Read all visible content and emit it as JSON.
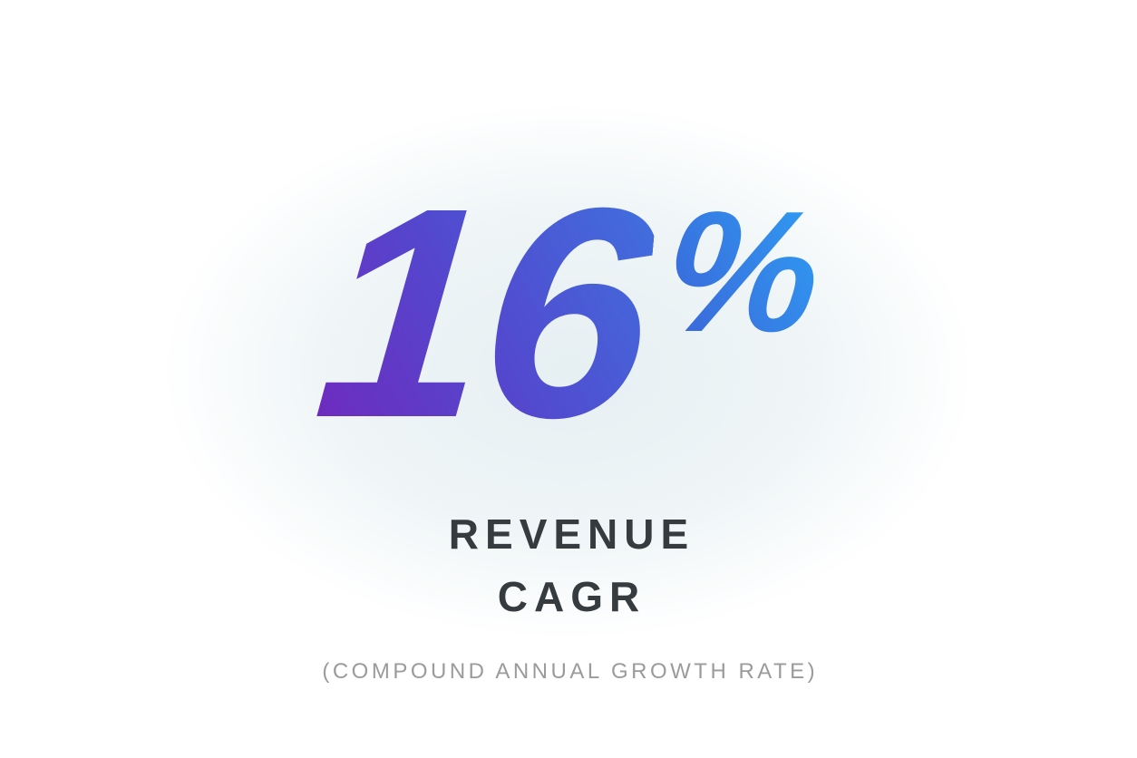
{
  "metric": {
    "value": "16",
    "unit": "%",
    "label_line1": "REVENUE",
    "label_line2": "CAGR",
    "sublabel": "(COMPOUND ANNUAL GROWTH RATE)"
  },
  "colors": {
    "number_gradient_start": "#7227BC",
    "number_gradient_mid": "#5348CE",
    "number_gradient_end": "#3E74E0",
    "percent_gradient_start": "#3C5FD6",
    "percent_gradient_end": "#2EA1F5",
    "label_color": "#363B40",
    "sublabel_color": "#9B9B9B",
    "glow_color": "#E6EFF2"
  },
  "chart_data": {
    "type": "table",
    "title": "REVENUE CAGR",
    "subtitle": "(COMPOUND ANNUAL GROWTH RATE)",
    "rows": [
      {
        "metric": "Revenue CAGR",
        "value": 16,
        "unit": "%"
      }
    ]
  }
}
